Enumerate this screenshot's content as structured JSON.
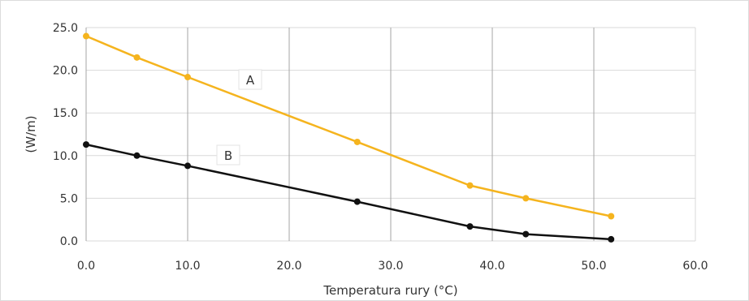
{
  "chart_data": {
    "type": "line",
    "title": "",
    "xlabel": "Temperatura rury (°C)",
    "ylabel": "(W/m)",
    "xlim": [
      0,
      60
    ],
    "ylim": [
      0,
      25
    ],
    "xticks": [
      "0.0",
      "10.0",
      "20.0",
      "30.0",
      "40.0",
      "50.0",
      "60.0"
    ],
    "yticks": [
      "0.0",
      "5.0",
      "10.0",
      "15.0",
      "20.0",
      "25.0"
    ],
    "grid": {
      "vertical": true,
      "horizontal": true
    },
    "series": [
      {
        "name": "A",
        "color": "#f5b41e",
        "points": [
          [
            0,
            24.0
          ],
          [
            5,
            21.5
          ],
          [
            10,
            19.2
          ],
          [
            26.7,
            11.6
          ],
          [
            37.8,
            6.5
          ],
          [
            43.3,
            5.0
          ],
          [
            51.7,
            2.9
          ]
        ]
      },
      {
        "name": "B",
        "color": "#111111",
        "points": [
          [
            0,
            11.3
          ],
          [
            5,
            10.0
          ],
          [
            10,
            8.8
          ],
          [
            26.7,
            4.6
          ],
          [
            37.8,
            1.7
          ],
          [
            43.3,
            0.8
          ],
          [
            51.7,
            0.2
          ]
        ]
      }
    ]
  }
}
